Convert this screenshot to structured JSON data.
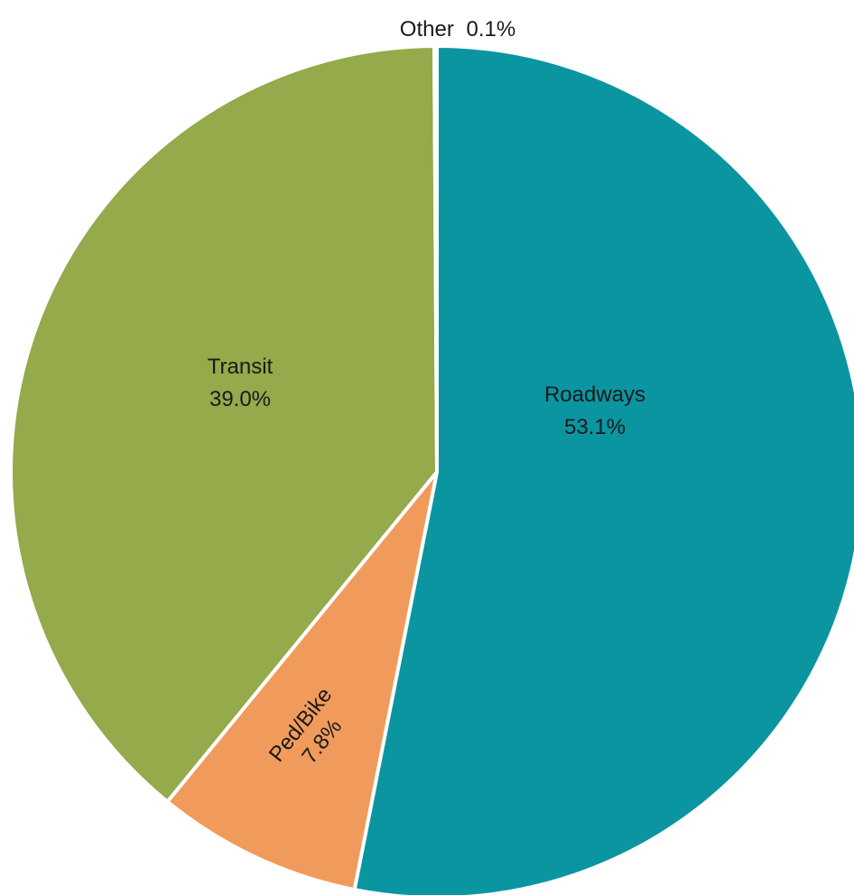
{
  "chart_data": {
    "type": "pie",
    "title": "",
    "slices": [
      {
        "label": "Roadways",
        "value": 53.1,
        "value_text": "53.1%",
        "color": "#0A95A1"
      },
      {
        "label": "Ped/Bike",
        "value": 7.8,
        "value_text": "7.8%",
        "color": "#F09B5C"
      },
      {
        "label": "Transit",
        "value": 39.0,
        "value_text": "39.0%",
        "color": "#94AA4B"
      },
      {
        "label": "Other",
        "value": 0.1,
        "value_text": "0.1%",
        "color": "#BFBFBF"
      }
    ],
    "start_angle": "12 o'clock",
    "direction": "clockwise",
    "legend": "none"
  }
}
